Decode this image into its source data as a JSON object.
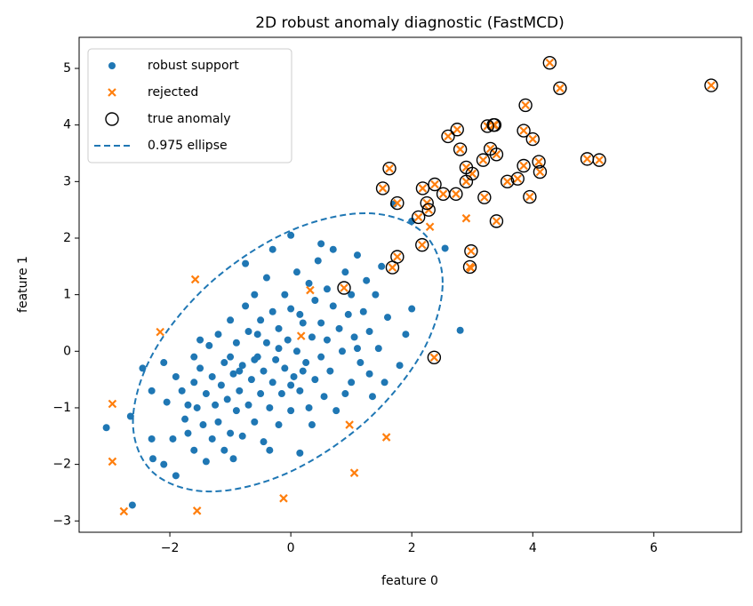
{
  "chart_data": {
    "type": "scatter",
    "title": "2D robust anomaly diagnostic (FastMCD)",
    "x_label": "feature 0",
    "y_label": "feature 1",
    "xlim": [
      -3.5,
      7.45
    ],
    "ylim": [
      -3.2,
      5.55
    ],
    "xticks": [
      {
        "value": -2,
        "label": "−2"
      },
      0,
      2,
      4,
      6
    ],
    "yticks": [
      {
        "value": -3,
        "label": "−3"
      },
      {
        "value": -2,
        "label": "−2"
      },
      {
        "value": -1,
        "label": "−1"
      },
      0,
      1,
      2,
      3,
      4,
      5
    ],
    "legend": "upper left",
    "series": [
      {
        "name": "robust support",
        "color": "#1f77b4",
        "marker": "dot",
        "x": [
          -3.05,
          -2.62,
          -2.65,
          -2.3,
          -2.28,
          -2.1,
          -1.9,
          -2.1,
          -2.05,
          -1.9,
          -1.8,
          -1.75,
          -1.7,
          -1.7,
          -1.6,
          -1.6,
          -1.55,
          -1.5,
          -1.45,
          -1.4,
          -1.4,
          -1.35,
          -1.3,
          -1.3,
          -1.25,
          -1.2,
          -1.2,
          -1.15,
          -1.1,
          -1.1,
          -1.05,
          -1.0,
          -1.0,
          -0.95,
          -0.9,
          -0.9,
          -0.85,
          -0.8,
          -0.8,
          -0.75,
          -0.7,
          -0.7,
          -0.65,
          -0.6,
          -0.6,
          -0.55,
          -0.5,
          -0.5,
          -0.45,
          -0.45,
          -0.4,
          -0.4,
          -0.35,
          -0.3,
          -0.3,
          -0.25,
          -0.2,
          -0.2,
          -0.15,
          -0.1,
          -0.1,
          -0.05,
          0.0,
          0.0,
          0.05,
          0.1,
          0.1,
          0.15,
          0.15,
          0.2,
          0.25,
          0.3,
          0.3,
          0.35,
          0.4,
          0.4,
          0.45,
          0.5,
          0.5,
          0.55,
          0.6,
          0.6,
          0.65,
          0.7,
          0.7,
          0.75,
          0.8,
          0.85,
          0.9,
          0.95,
          1.0,
          1.0,
          1.05,
          1.1,
          1.15,
          1.2,
          1.25,
          1.3,
          1.35,
          1.4,
          1.45,
          1.5,
          1.55,
          1.6,
          1.7,
          1.8,
          1.9,
          2.0,
          2.0,
          2.55,
          2.8,
          -0.75,
          -0.3,
          0.0,
          0.5,
          -2.3,
          -1.95,
          -1.5,
          -0.95,
          -0.35,
          0.35,
          0.9,
          1.3,
          -1.0,
          -0.6,
          -0.2,
          0.2,
          -0.55,
          0.15,
          -0.85,
          0.0,
          1.1,
          -1.6,
          -2.45
        ],
        "y": [
          -1.35,
          -2.72,
          -1.15,
          -1.55,
          -1.9,
          -2.0,
          -2.2,
          -0.2,
          -0.9,
          -0.45,
          -0.7,
          -1.2,
          -1.45,
          -0.95,
          -0.55,
          -1.75,
          -1.0,
          -0.3,
          -1.3,
          -0.75,
          -1.95,
          0.1,
          -0.45,
          -1.55,
          -0.95,
          -1.25,
          0.3,
          -0.6,
          -1.75,
          -0.2,
          -0.85,
          -1.45,
          0.55,
          -0.4,
          -1.05,
          0.15,
          -0.7,
          -1.5,
          -0.25,
          0.8,
          -0.95,
          0.35,
          -0.5,
          -1.25,
          1.0,
          -0.1,
          -0.75,
          0.55,
          -1.6,
          -0.35,
          0.15,
          1.3,
          -1.0,
          -0.55,
          0.7,
          -0.15,
          -1.3,
          0.4,
          -0.75,
          1.0,
          -0.3,
          0.2,
          -1.05,
          0.75,
          -0.45,
          1.4,
          0.0,
          -1.8,
          -0.7,
          0.5,
          -0.2,
          1.2,
          -1.0,
          0.25,
          -0.5,
          0.9,
          1.6,
          -0.1,
          0.5,
          -0.8,
          1.1,
          0.2,
          -0.35,
          0.8,
          1.8,
          -1.05,
          0.4,
          0.0,
          1.4,
          0.65,
          -0.55,
          1.0,
          0.25,
          1.7,
          -0.2,
          0.7,
          1.25,
          0.35,
          -0.8,
          1.0,
          0.05,
          1.5,
          -0.55,
          0.6,
          2.6,
          -0.25,
          0.3,
          0.75,
          2.3,
          1.82,
          0.37,
          1.55,
          1.8,
          2.05,
          1.9,
          -0.7,
          -1.55,
          0.2,
          -1.9,
          -1.75,
          -1.3,
          -0.75,
          -0.4,
          -0.1,
          -0.15,
          0.05,
          -0.35,
          0.3,
          0.65,
          -0.35,
          -0.6,
          0.05,
          -0.1,
          -0.3
        ]
      },
      {
        "name": "rejected",
        "color": "#ff7f0e",
        "marker": "x",
        "x": [
          -2.95,
          -2.95,
          -2.76,
          -2.16,
          -1.58,
          -1.55,
          -0.12,
          0.17,
          0.32,
          0.97,
          1.05,
          1.58,
          2.9,
          2.98,
          2.3,
          0.88,
          1.68,
          1.76,
          2.17,
          2.11,
          2.37,
          2.98,
          2.96,
          1.63,
          1.52,
          1.76,
          2.18,
          2.25,
          2.28,
          2.38,
          2.52,
          2.6,
          2.73,
          2.75,
          2.8,
          2.9,
          2.9,
          3.0,
          3.18,
          3.2,
          3.25,
          3.3,
          3.35,
          3.4,
          3.4,
          3.37,
          3.58,
          3.75,
          3.85,
          3.85,
          3.88,
          3.95,
          4.0,
          4.1,
          4.12,
          4.28,
          4.45,
          4.9,
          5.1,
          6.95
        ],
        "y": [
          -0.93,
          -1.95,
          -2.83,
          0.34,
          1.27,
          -2.82,
          -2.6,
          0.27,
          1.08,
          -1.3,
          -2.15,
          -1.52,
          2.35,
          1.47,
          2.2,
          1.12,
          1.48,
          1.67,
          1.88,
          2.37,
          -0.11,
          1.77,
          1.49,
          3.23,
          2.88,
          2.62,
          2.88,
          2.62,
          2.5,
          2.95,
          2.78,
          3.8,
          2.78,
          3.92,
          3.57,
          3.0,
          3.25,
          3.14,
          3.38,
          2.72,
          3.98,
          3.58,
          4.0,
          3.48,
          2.3,
          4.0,
          3.0,
          3.05,
          3.28,
          3.9,
          4.35,
          2.73,
          3.75,
          3.35,
          3.17,
          5.1,
          4.65,
          3.4,
          3.38,
          4.7
        ]
      },
      {
        "name": "true anomaly",
        "color": "#000000",
        "marker": "ring",
        "x": [
          0.88,
          1.68,
          1.76,
          2.17,
          2.11,
          2.37,
          2.98,
          2.96,
          1.63,
          1.52,
          1.76,
          2.18,
          2.25,
          2.28,
          2.38,
          2.52,
          2.6,
          2.73,
          2.75,
          2.8,
          2.9,
          2.9,
          3.0,
          3.18,
          3.2,
          3.25,
          3.3,
          3.35,
          3.4,
          3.4,
          3.37,
          3.58,
          3.75,
          3.85,
          3.85,
          3.88,
          3.95,
          4.0,
          4.1,
          4.12,
          4.28,
          4.45,
          4.9,
          5.1,
          6.95
        ],
        "y": [
          1.12,
          1.48,
          1.67,
          1.88,
          2.37,
          -0.11,
          1.77,
          1.49,
          3.23,
          2.88,
          2.62,
          2.88,
          2.62,
          2.5,
          2.95,
          2.78,
          3.8,
          2.78,
          3.92,
          3.57,
          3.0,
          3.25,
          3.14,
          3.38,
          2.72,
          3.98,
          3.58,
          4.0,
          3.48,
          2.3,
          4.0,
          3.0,
          3.05,
          3.28,
          3.9,
          4.35,
          2.73,
          3.75,
          3.35,
          3.17,
          5.1,
          4.65,
          3.4,
          3.38,
          4.7
        ]
      },
      {
        "name": "0.975 ellipse",
        "color": "#1f77b4",
        "marker": "dashed-loop",
        "x": [
          2.51,
          2.17,
          1.23,
          -0.05,
          -1.33,
          -2.27,
          -2.61,
          -2.27,
          -1.33,
          -0.05,
          1.23,
          2.17
        ],
        "y": [
          1.21,
          2.11,
          2.44,
          2.11,
          1.21,
          -0.02,
          -1.25,
          -2.15,
          -2.48,
          -2.15,
          -1.25,
          -0.02
        ]
      }
    ]
  }
}
